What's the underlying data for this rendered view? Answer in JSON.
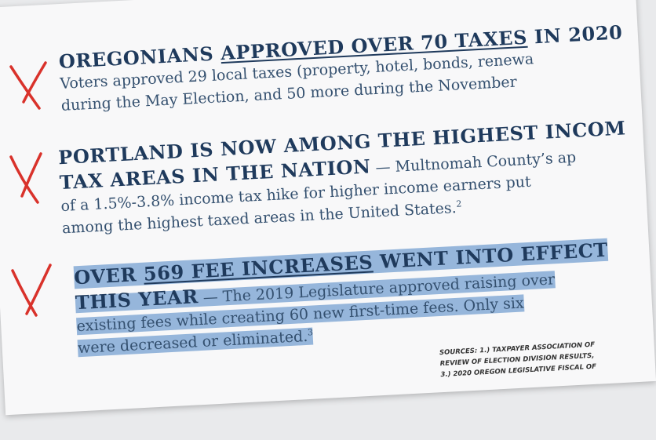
{
  "items": [
    {
      "heading_start": "OREGONIANS",
      "heading_underlined": "APPROVED OVER 70 TAXES",
      "heading_end": "IN 2020",
      "body": [
        "Voters approved 29 local taxes (property, hotel, bonds, renewa",
        "during the May Election, and 50 more during the November"
      ]
    },
    {
      "heading": [
        "PORTLAND IS NOW AMONG THE HIGHEST INCOM",
        "TAX AREAS IN THE NATION"
      ],
      "body": [
        "— Multnomah County’s ap",
        "of a 1.5%-3.8% income tax hike for higher income earners put",
        "among the highest taxed areas in the United States."
      ],
      "footnote": "2"
    },
    {
      "heading_start": "OVER",
      "heading_underlined": "569 FEE INCREASES",
      "heading_end": "WENT INTO EFFECT",
      "heading_line2": "THIS YEAR",
      "body": [
        "— The 2019 Legislature approved raising over",
        "existing fees while creating 60 new first-time fees. Only six",
        "were decreased or eliminated."
      ],
      "footnote": "3"
    }
  ],
  "sources": [
    "SOURCES: 1.) TAXPAYER ASSOCIATION OF",
    "REVIEW OF ELECTION DIVISION RESULTS,",
    "3.) 2020 OREGON LEGISLATIVE FISCAL OF"
  ]
}
